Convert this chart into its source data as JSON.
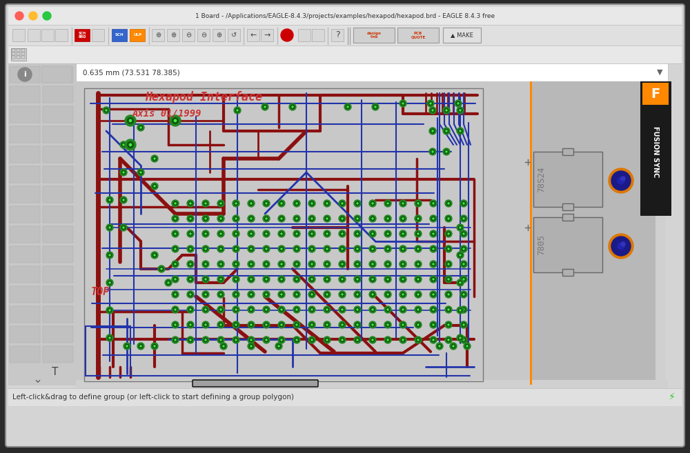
{
  "title_text": "1 Board - /Applications/EAGLE-8.4.3/projects/examples/hexapod/hexapod.brd - EAGLE 8.4.3 free",
  "status_text": "Left-click&drag to define group (or left-click to start defining a group polygon)",
  "coord_text": "0.635 mm (73.531 78.385)",
  "window_bg": "#d4d4d4",
  "titlebar_bg": "#e8e8e8",
  "toolbar_bg": "#e0e0e0",
  "toolbar2_bg": "#e8e8e8",
  "sidebar_bg": "#c8c8c8",
  "pcb_bg": "#c8c8c8",
  "pcb_border": "#888888",
  "right_panel_bg": "#b8b8b8",
  "status_bg": "#e0e0e0",
  "scroll_bg": "#d0d0d0",
  "scroll_thumb": "#a0a0a0",
  "dark_red": "#8b1010",
  "blue": "#2233aa",
  "dark_blue": "#1a2288",
  "green_via_outer": "#228822",
  "green_via_inner": "#115511",
  "green_dot": "#44ee44",
  "text_red": "#cc3333",
  "orange": "#ff8800",
  "fusion_bg": "#1a1a1a",
  "comp_box": "#b0b0b0",
  "comp_border": "#666666",
  "via_blue": "#1a1a88",
  "via_orange": "#dd7700",
  "traffic_red": "#ff5f57",
  "traffic_yellow": "#febc2e",
  "traffic_green": "#28c840",
  "sch_blue": "#cc0000",
  "ulp_orange": "#ff8800",
  "outer_shadow": "#2a2a2a"
}
